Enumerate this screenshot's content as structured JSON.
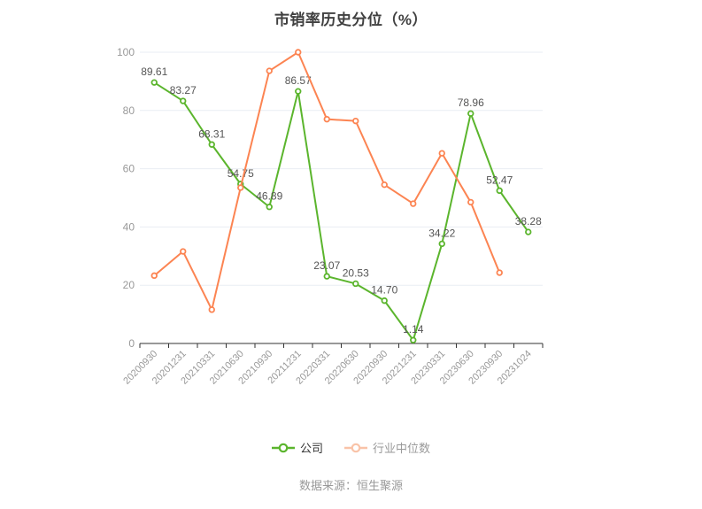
{
  "title": "市销率历史分位（%）",
  "footer": {
    "source_label": "数据来源：恒生聚源"
  },
  "colors": {
    "company_line": "#5bb52d",
    "industry_line": "#fc8452",
    "industry_legend_icon": "#f9c3a8",
    "grid_line": "#e9edf3",
    "axis_line": "#333333",
    "axis_label": "#999999",
    "data_label": "#555555",
    "title_text": "#404040",
    "legend_company_text": "#333333",
    "legend_industry_text": "#999999"
  },
  "legend": {
    "items": [
      {
        "label": "公司",
        "icon_color": "#5bb52d",
        "label_color": "#333333"
      },
      {
        "label": "行业中位数",
        "icon_color": "#f9c3a8",
        "label_color": "#999999"
      }
    ]
  },
  "chart_data": {
    "type": "line",
    "title": "市销率历史分位（%）",
    "xlabel": "",
    "ylabel": "",
    "ylim": [
      0,
      100
    ],
    "yticks": [
      0,
      20,
      40,
      60,
      80,
      100
    ],
    "grid": true,
    "legend_position": "bottom",
    "categories": [
      "20200930",
      "20201231",
      "20210331",
      "20210630",
      "20210930",
      "20211231",
      "20220331",
      "20220630",
      "20220930",
      "20221231",
      "20230331",
      "20230630",
      "20230930",
      "20231024"
    ],
    "series": [
      {
        "name": "公司",
        "color": "#5bb52d",
        "values": [
          89.61,
          83.27,
          68.31,
          54.75,
          46.89,
          86.57,
          23.07,
          20.53,
          14.7,
          1.14,
          34.22,
          78.96,
          52.47,
          38.28
        ],
        "labels": [
          "89.61",
          "83.27",
          "68.31",
          "54.75",
          "46.89",
          "86.57",
          "23.07",
          "20.53",
          "14.70",
          "1.14",
          "34.22",
          "78.96",
          "52.47",
          "38.28"
        ]
      },
      {
        "name": "行业中位数",
        "color": "#fc8452",
        "values": [
          23.3,
          31.6,
          11.6,
          53.5,
          93.6,
          100,
          77.0,
          76.4,
          54.5,
          48.0,
          65.3,
          48.5,
          24.3
        ],
        "labels": []
      }
    ]
  }
}
